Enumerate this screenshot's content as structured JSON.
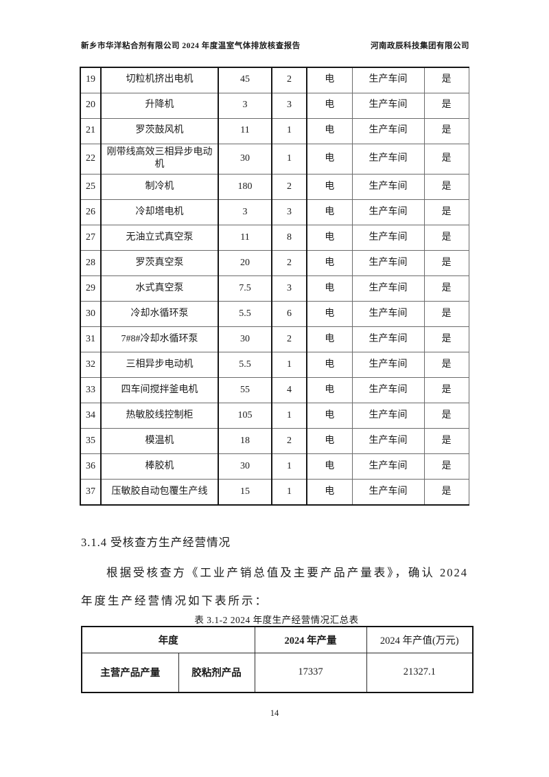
{
  "header": {
    "left": "新乡市华洋粘合剂有限公司 2024 年度温室气体排放核查报告",
    "right": "河南政辰科技集团有限公司"
  },
  "equipment_table": {
    "rows": [
      {
        "no": "19",
        "name": "切粒机挤出电机",
        "power": "45",
        "qty": "2",
        "energy": "电",
        "workshop": "生产车间",
        "included": "是"
      },
      {
        "no": "20",
        "name": "升降机",
        "power": "3",
        "qty": "3",
        "energy": "电",
        "workshop": "生产车间",
        "included": "是"
      },
      {
        "no": "21",
        "name": "罗茨鼓风机",
        "power": "11",
        "qty": "1",
        "energy": "电",
        "workshop": "生产车间",
        "included": "是"
      },
      {
        "no": "22",
        "name": "刚带线高效三相异步电动机",
        "power": "30",
        "qty": "1",
        "energy": "电",
        "workshop": "生产车间",
        "included": "是"
      },
      {
        "no": "25",
        "name": "制冷机",
        "power": "180",
        "qty": "2",
        "energy": "电",
        "workshop": "生产车间",
        "included": "是"
      },
      {
        "no": "26",
        "name": "冷却塔电机",
        "power": "3",
        "qty": "3",
        "energy": "电",
        "workshop": "生产车间",
        "included": "是"
      },
      {
        "no": "27",
        "name": "无油立式真空泵",
        "power": "11",
        "qty": "8",
        "energy": "电",
        "workshop": "生产车间",
        "included": "是"
      },
      {
        "no": "28",
        "name": "罗茨真空泵",
        "power": "20",
        "qty": "2",
        "energy": "电",
        "workshop": "生产车间",
        "included": "是"
      },
      {
        "no": "29",
        "name": "水式真空泵",
        "power": "7.5",
        "qty": "3",
        "energy": "电",
        "workshop": "生产车间",
        "included": "是"
      },
      {
        "no": "30",
        "name": "冷却水循环泵",
        "power": "5.5",
        "qty": "6",
        "energy": "电",
        "workshop": "生产车间",
        "included": "是"
      },
      {
        "no": "31",
        "name": "7#8#冷却水循环泵",
        "power": "30",
        "qty": "2",
        "energy": "电",
        "workshop": "生产车间",
        "included": "是"
      },
      {
        "no": "32",
        "name": "三相异步电动机",
        "power": "5.5",
        "qty": "1",
        "energy": "电",
        "workshop": "生产车间",
        "included": "是"
      },
      {
        "no": "33",
        "name": "四车间搅拌釜电机",
        "power": "55",
        "qty": "4",
        "energy": "电",
        "workshop": "生产车间",
        "included": "是"
      },
      {
        "no": "34",
        "name": "热敏胶线控制柜",
        "power": "105",
        "qty": "1",
        "energy": "电",
        "workshop": "生产车间",
        "included": "是"
      },
      {
        "no": "35",
        "name": "模温机",
        "power": "18",
        "qty": "2",
        "energy": "电",
        "workshop": "生产车间",
        "included": "是"
      },
      {
        "no": "36",
        "name": "棒胶机",
        "power": "30",
        "qty": "1",
        "energy": "电",
        "workshop": "生产车间",
        "included": "是"
      },
      {
        "no": "37",
        "name": "压敏胶自动包覆生产线",
        "power": "15",
        "qty": "1",
        "energy": "电",
        "workshop": "生产车间",
        "included": "是"
      }
    ]
  },
  "section": {
    "heading": "3.1.4 受核查方生产经营情况",
    "para_line1": "根据受核查方《工业产销总值及主要产品产量表》，确认 2024",
    "para_line2": "年度生产经营情况如下表所示："
  },
  "summary_table": {
    "caption": "表 3.1-2 2024 年度生产经营情况汇总表",
    "headers": {
      "year": "年度",
      "output": "2024 年产量",
      "value": "2024 年产值(万元)"
    },
    "row": {
      "category": "主营产品产量",
      "product": "胶粘剂产品",
      "output": "17337",
      "value": "21327.1"
    }
  },
  "footer": {
    "page_number": "14"
  }
}
